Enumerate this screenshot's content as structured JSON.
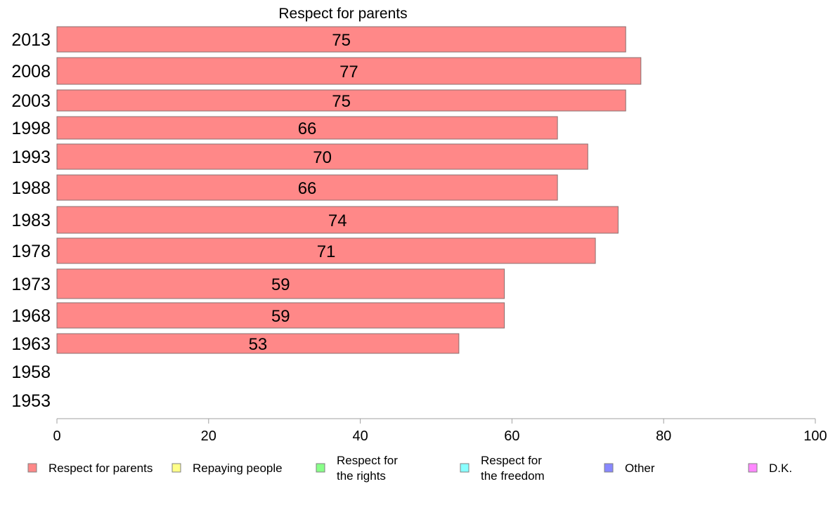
{
  "chart_data": {
    "type": "bar",
    "orientation": "horizontal",
    "title": "Respect for parents",
    "categories": [
      "2013",
      "2008",
      "2003",
      "1998",
      "1993",
      "1988",
      "1983",
      "1978",
      "1973",
      "1968",
      "1963",
      "1958",
      "1953"
    ],
    "series": [
      {
        "name": "Respect for parents",
        "color": "#ff8888",
        "values": [
          75,
          77,
          75,
          66,
          70,
          66,
          74,
          71,
          59,
          59,
          53,
          null,
          null
        ]
      }
    ],
    "xlim": [
      0,
      100
    ],
    "xticks": [
      "0",
      "20",
      "40",
      "60",
      "80",
      "100"
    ],
    "grid": false,
    "legend_position": "bottom",
    "legend": [
      {
        "lines": [
          "Respect for parents"
        ],
        "color": "#ff8888"
      },
      {
        "lines": [
          "Repaying people"
        ],
        "color": "#ffff88"
      },
      {
        "lines": [
          "Respect for",
          "the rights"
        ],
        "color": "#88ff88"
      },
      {
        "lines": [
          "Respect for",
          "the freedom"
        ],
        "color": "#88ffff"
      },
      {
        "lines": [
          "Other"
        ],
        "color": "#8888ff"
      },
      {
        "lines": [
          "D.K."
        ],
        "color": "#ff88ff"
      }
    ]
  }
}
